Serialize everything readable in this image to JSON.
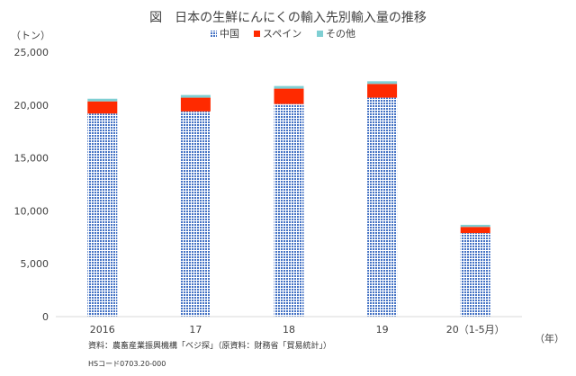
{
  "chart_data": {
    "type": "bar",
    "stacked": true,
    "title": "図　日本の生鮮にんにくの輸入先別輸入量の推移",
    "unit_label": "（トン）",
    "x_unit_label": "（年）",
    "categories": [
      "2016",
      "17",
      "18",
      "19",
      "20（1-5月）"
    ],
    "series": [
      {
        "name": "中国",
        "values": [
          19200,
          19400,
          20100,
          20700,
          7900
        ],
        "color": "#4472c4",
        "pattern": "grid"
      },
      {
        "name": "スペイン",
        "values": [
          1150,
          1300,
          1450,
          1300,
          580
        ],
        "color": "#ff2a00",
        "pattern": "solid"
      },
      {
        "name": "その他",
        "values": [
          250,
          250,
          250,
          250,
          200
        ],
        "color": "#7fcfd3",
        "pattern": "solid"
      }
    ],
    "ylim": [
      0,
      25000
    ],
    "yticks": [
      0,
      5000,
      10000,
      15000,
      20000,
      25000
    ],
    "ytick_labels": [
      "0",
      "5,000",
      "10,000",
      "15,000",
      "20,000",
      "25,000"
    ],
    "legend_position": "top",
    "grid": false,
    "notes": [
      "資料：農畜産業振興機構「ベジ探」（原資料：財務省「貿易統計」）",
      "HSコード0703.20-000"
    ]
  }
}
